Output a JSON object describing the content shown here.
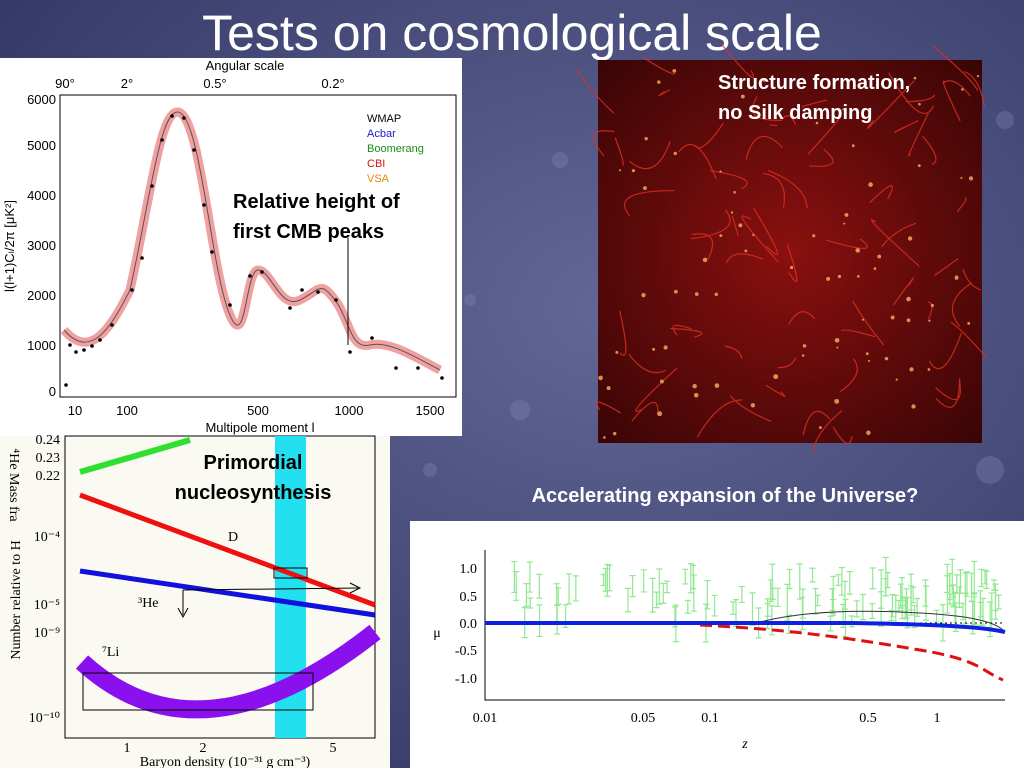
{
  "title": "Tests on cosmological scale",
  "cmb": {
    "top_axis_label": "Angular scale",
    "top_ticks": [
      "90°",
      "2°",
      "0.5°",
      "0.2°"
    ],
    "y_ticks": [
      "6000",
      "5000",
      "4000",
      "3000",
      "2000",
      "1000",
      "0"
    ],
    "x_ticks": [
      "10",
      "100",
      "500",
      "1000",
      "1500"
    ],
    "x_label": "Multipole moment l",
    "y_label": "l(l+1)Cₗ/2π [μK²]",
    "legend": [
      "WMAP",
      "Acbar",
      "Boomerang",
      "CBI",
      "VSA"
    ],
    "annotation": [
      "Relative height of",
      "first CMB peaks"
    ]
  },
  "simulation": {
    "caption": [
      "Structure formation,",
      "no Silk damping"
    ]
  },
  "bbn": {
    "y_label_top": "⁴He Mass fra",
    "y_label": "Number relative to H",
    "y_ticks": [
      "0.24",
      "0.23",
      "0.22",
      "10⁻⁴",
      "10⁻⁵",
      "10⁻⁹",
      "10⁻¹⁰"
    ],
    "x_ticks": [
      "1",
      "2",
      "5"
    ],
    "x_label": "Baryon density (10⁻³¹ g cm⁻³)",
    "curve_labels": [
      "D",
      "³He",
      "⁷Li"
    ],
    "annotation": [
      "Primordial",
      "nucleosynthesis"
    ]
  },
  "supernova": {
    "caption": "Accelerating expansion of the Universe?",
    "y_ticks": [
      "1.0",
      "0.5",
      "0.0",
      "-0.5",
      "-1.0"
    ],
    "x_ticks": [
      "0.01",
      "0.05",
      "0.1",
      "0.5",
      "1"
    ],
    "x_label": "z",
    "y_label": "μ"
  }
}
